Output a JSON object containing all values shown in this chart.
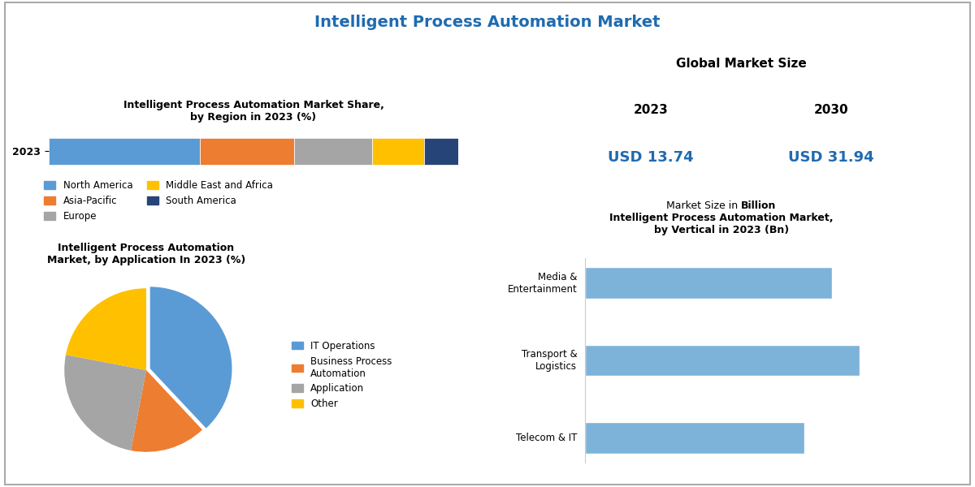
{
  "main_title": "Intelligent Process Automation Market",
  "main_title_color": "#1F6BB0",
  "background_color": "#ffffff",
  "stacked_bar": {
    "title": "Intelligent Process Automation Market Share,\nby Region in 2023 (%)",
    "year_label": "2023",
    "segments": [
      {
        "label": "North America",
        "value": 35,
        "color": "#5B9BD5"
      },
      {
        "label": "Asia-Pacific",
        "value": 22,
        "color": "#ED7D31"
      },
      {
        "label": "Europe",
        "value": 18,
        "color": "#A5A5A5"
      },
      {
        "label": "Middle East and Africa",
        "value": 12,
        "color": "#FFC000"
      },
      {
        "label": "South America",
        "value": 8,
        "color": "#264478"
      }
    ]
  },
  "global_market": {
    "title": "Global Market Size",
    "year1": "2023",
    "year2": "2030",
    "val1": "USD 13.74",
    "val2": "USD 31.94",
    "note_prefix": "Market Size in ",
    "note_bold": "Billion",
    "val_color": "#1F6BB0"
  },
  "pie_chart": {
    "title": "Intelligent Process Automation\nMarket, by Application In 2023 (%)",
    "segments": [
      {
        "label": "IT Operations",
        "value": 38,
        "color": "#5B9BD5"
      },
      {
        "label": "Business Process\nAutomation",
        "value": 15,
        "color": "#ED7D31"
      },
      {
        "label": "Application",
        "value": 25,
        "color": "#A5A5A5"
      },
      {
        "label": "Other",
        "value": 22,
        "color": "#FFC000"
      }
    ],
    "startangle": 90,
    "explode_idx": 0
  },
  "bar_chart": {
    "title": "Intelligent Process Automation Market,\nby Vertical in 2023 (Bn)",
    "categories": [
      "Media &\nEntertainment",
      "Transport &\nLogistics",
      "Telecom & IT"
    ],
    "values": [
      1.8,
      2.0,
      1.6
    ],
    "bar_color": "#7DB3D8"
  }
}
